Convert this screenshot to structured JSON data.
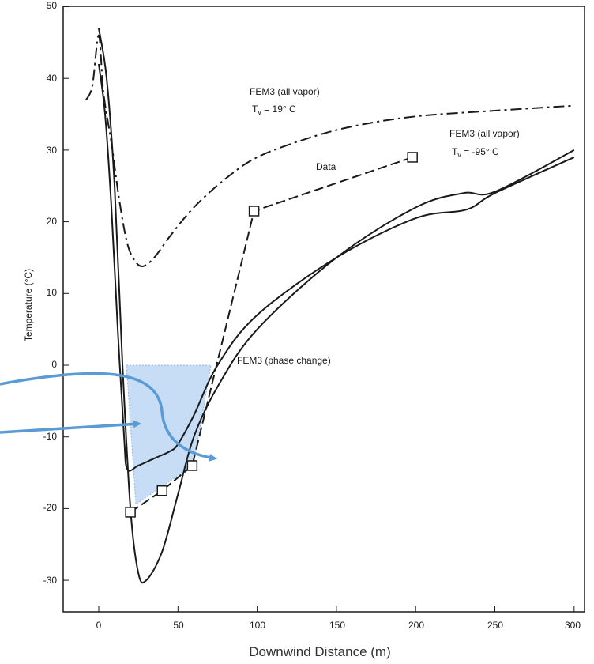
{
  "chart_data": {
    "type": "line",
    "xlabel": "Downwind Distance (m)",
    "ylabel": "Temperature (°C)",
    "xlim": [
      -10,
      305
    ],
    "ylim": [
      -35,
      50
    ],
    "x_ticks": [
      0,
      50,
      100,
      150,
      200,
      250,
      300
    ],
    "y_ticks": [
      -30,
      -20,
      -10,
      0,
      10,
      20,
      30,
      40,
      50
    ],
    "grid": false,
    "colors": {
      "ink": "#1a1a1a",
      "highlight_fill": "#b8d4f2",
      "arrow": "#5b9bd5"
    },
    "series": [
      {
        "id": "fem3-vapor-19",
        "style": "dash-dot",
        "x": [
          -8,
          -4,
          0,
          3,
          8,
          13,
          18,
          23,
          28,
          35,
          45,
          60,
          80,
          100,
          130,
          160,
          200,
          250,
          300
        ],
        "y": [
          37,
          39,
          46,
          38,
          31,
          23,
          17,
          14.5,
          13.8,
          15,
          18,
          22,
          26,
          29,
          31.5,
          33.3,
          34.7,
          35.5,
          36.2
        ]
      },
      {
        "id": "fem3-vapor-neg95",
        "style": "solid",
        "x": [
          0,
          5,
          10,
          15,
          20,
          25,
          30,
          40,
          50,
          60,
          75,
          100,
          150,
          200,
          230,
          250,
          300
        ],
        "y": [
          47,
          40,
          25,
          0,
          -20,
          -29,
          -30,
          -26,
          -18,
          -10,
          -3,
          5,
          15,
          22,
          24,
          24.2,
          30
        ]
      },
      {
        "id": "fem3-phase-change",
        "style": "solid",
        "x": [
          0,
          4,
          8,
          12,
          16,
          18,
          25,
          35,
          45,
          50,
          60,
          75,
          100,
          150,
          200,
          232,
          250,
          300
        ],
        "y": [
          42,
          35,
          22,
          5,
          -10,
          -14.5,
          -14,
          -13,
          -12,
          -11,
          -7,
          0,
          7,
          15,
          20.5,
          21.7,
          24,
          29
        ]
      },
      {
        "id": "data",
        "style": "dashed",
        "markers": "open-square",
        "x": [
          20,
          40,
          59,
          98,
          198
        ],
        "y": [
          -20.5,
          -17.5,
          -14,
          21.5,
          29
        ]
      }
    ],
    "annotations": [
      {
        "id": "vapor-19",
        "lines": [
          "FEM3 (all vapor)",
          "T",
          "v",
          " = 19° C"
        ],
        "x": 95,
        "y": 41.3
      },
      {
        "id": "vapor-neg95",
        "lines": [
          "FEM3 (all vapor)",
          "T",
          "v",
          " = -95° C"
        ],
        "x": 221,
        "y": 32.2
      },
      {
        "id": "data-label",
        "text": "Data",
        "x": 138,
        "y": 28.2
      },
      {
        "id": "phase-change",
        "text": "FEM3 (phase change)",
        "x": 86,
        "y": 0.6
      }
    ]
  }
}
